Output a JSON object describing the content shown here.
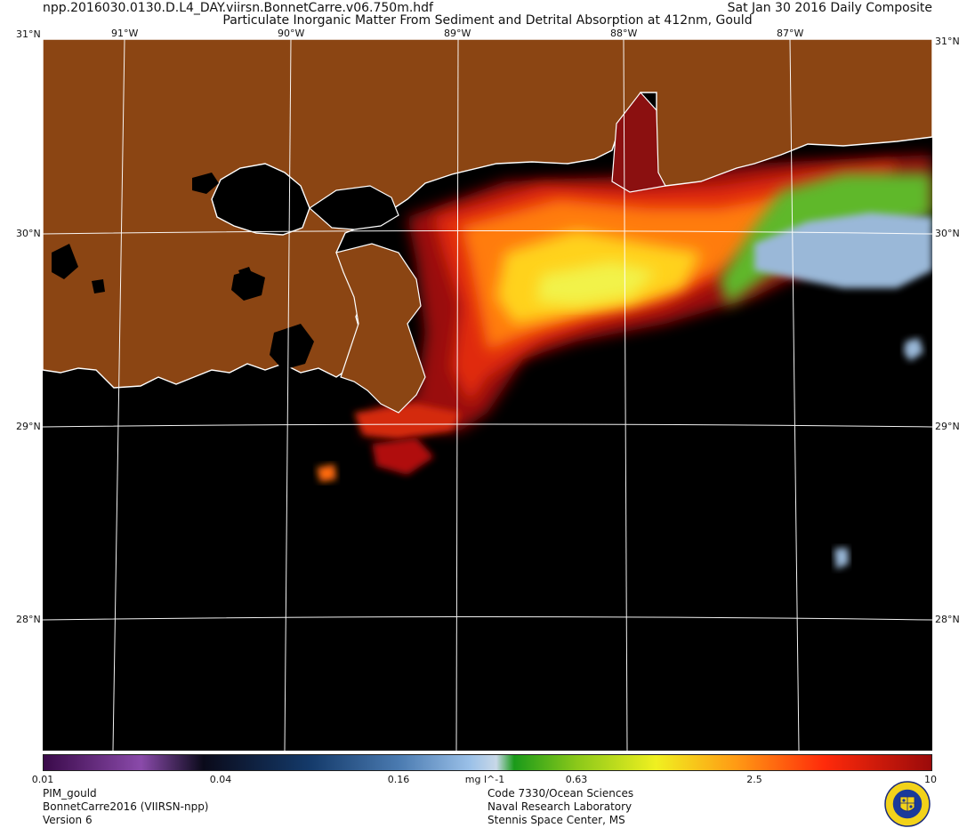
{
  "header": {
    "filename": "npp.2016030.0130.D.L4_DAY.viirsn.BonnetCarre.v06.750m.hdf",
    "date": "Sat Jan 30 2016 Daily Composite",
    "title": "Particulate Inorganic Matter From Sediment and Detrital Absorption at 412nm, Gould"
  },
  "map": {
    "lon_labels": [
      "91°W",
      "90°W",
      "89°W",
      "88°W",
      "87°W"
    ],
    "lat_labels": [
      "31°N",
      "30°N",
      "29°N",
      "28°N"
    ],
    "land_color": "#8b4513",
    "no_data_color": "#000000",
    "coastline_color": "#ffffff",
    "graticule_color": "#ffffff"
  },
  "colorbar": {
    "ticks": [
      "0.01",
      "0.04",
      "0.16",
      "0.63",
      "2.5",
      "10"
    ],
    "unit": "mg l^-1",
    "scale": "log"
  },
  "footer": {
    "left": [
      "PIM_gould",
      "BonnetCarre2016 (VIIRSN-npp)",
      "Version 6"
    ],
    "right": [
      "Code 7330/Ocean Sciences",
      "Naval Research Laboratory",
      "Stennis Space Center, MS"
    ]
  }
}
